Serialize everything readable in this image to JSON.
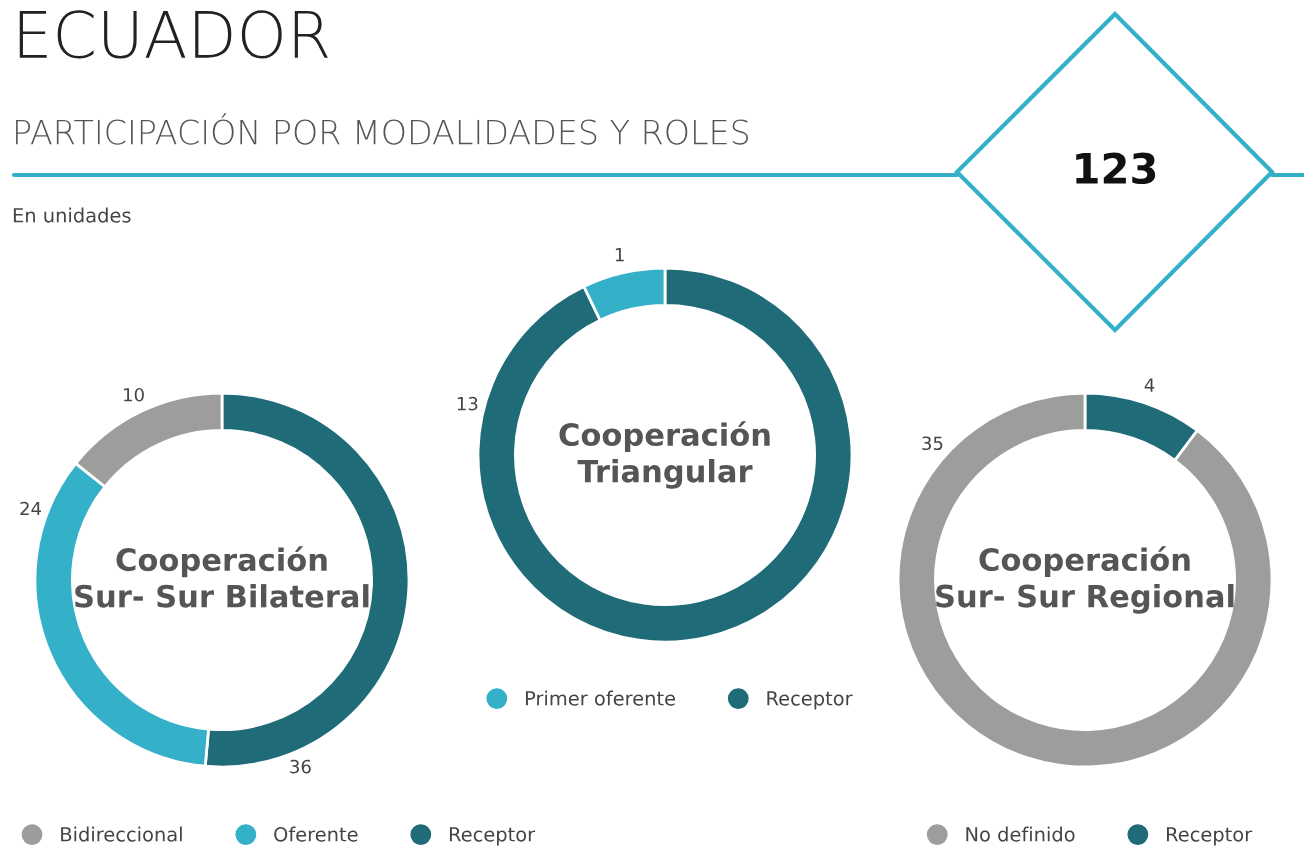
{
  "chart_data": [
    {
      "type": "other",
      "title": "ECUADOR",
      "subtitle": "PARTICIPACIÓN POR MODALIDADES Y ROLES",
      "annotations": [
        "En unidades",
        "123"
      ]
    },
    {
      "type": "donut",
      "title": "Cooperación\nTriangular",
      "categories": [
        "Primer oferente",
        "Receptor"
      ],
      "values": [
        1,
        13
      ],
      "colors": [
        "#35b0c9",
        "#206b78"
      ],
      "data_labels": true,
      "legend": "bottom"
    },
    {
      "type": "donut",
      "title": "Cooperación\nSur- Sur Bilateral",
      "categories": [
        "Bidireccional",
        "Oferente",
        "Receptor"
      ],
      "values": [
        10,
        24,
        36
      ],
      "colors": [
        "#9d9d9c",
        "#35b0c9",
        "#206b78"
      ],
      "data_labels": true,
      "legend": "bottom"
    },
    {
      "type": "donut",
      "title": "Cooperación\nSur- Sur Regional",
      "categories": [
        "No definido",
        "Receptor"
      ],
      "values": [
        35,
        4
      ],
      "colors": [
        "#9d9d9c",
        "#206b78"
      ],
      "data_labels": true,
      "legend": "bottom"
    }
  ]
}
